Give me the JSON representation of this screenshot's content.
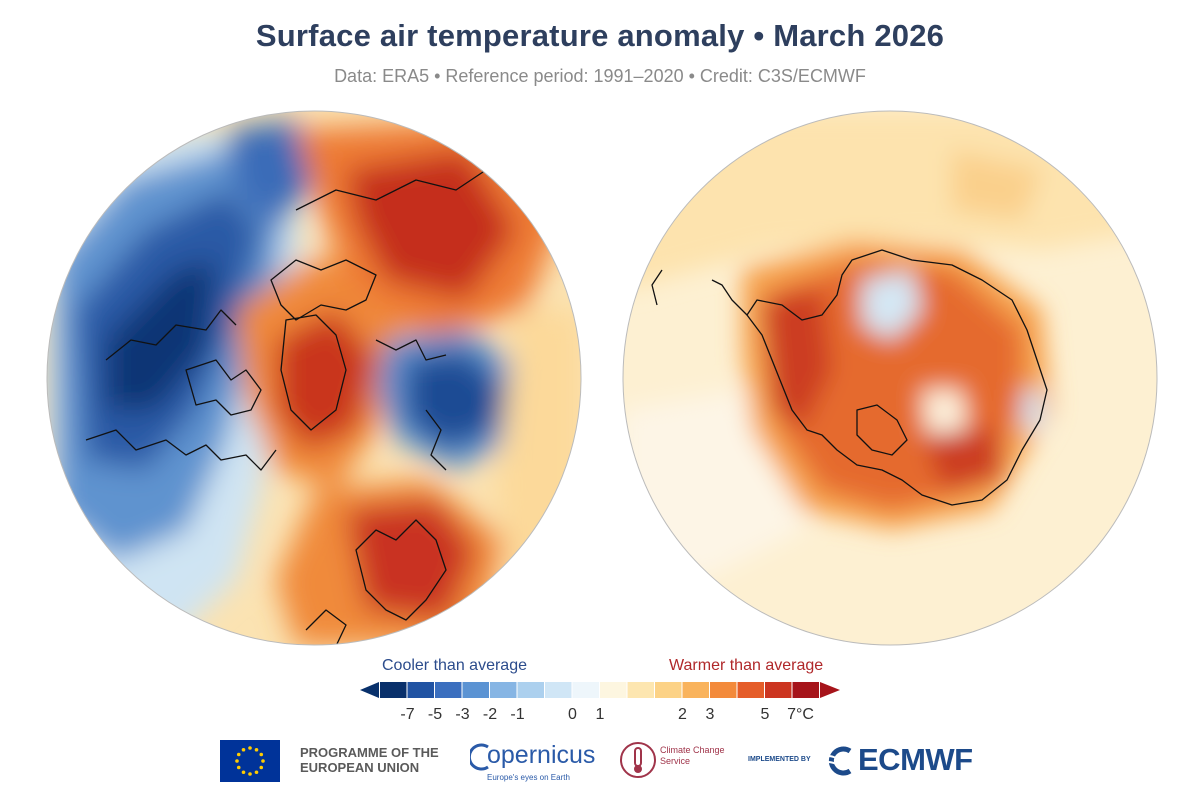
{
  "header": {
    "title": "Surface air temperature anomaly • March 2026",
    "subtitle": "Data: ERA5 • Reference period: 1991–2020 • Credit: C3S/ECMWF"
  },
  "maps": {
    "north": {
      "hemisphere": "Northern Hemisphere",
      "projection": "polar stereographic"
    },
    "south": {
      "hemisphere": "Southern Hemisphere",
      "projection": "polar stereographic"
    }
  },
  "legend": {
    "cooler_label": "Cooler than average",
    "warmer_label": "Warmer than average",
    "ticks": [
      "-7",
      "-5",
      "-3",
      "-2",
      "-1",
      "0",
      "1",
      "2",
      "3",
      "5",
      "7°C"
    ],
    "colors": [
      "#08306b",
      "#2153a3",
      "#3b6fbf",
      "#5b93d3",
      "#86b5e4",
      "#acd0ee",
      "#d0e6f6",
      "#eef6fb",
      "#fdf6e0",
      "#fde6b0",
      "#fcd286",
      "#f9b35c",
      "#f38a3b",
      "#e55d29",
      "#cc3520",
      "#a6141a"
    ],
    "cooler_color": "#2c4c8c",
    "warmer_color": "#b0282a"
  },
  "footer": {
    "programme": "PROGRAMME OF THE EUROPEAN UNION",
    "copernicus": "opernicus",
    "copernicus_tagline": "Europe's eyes on Earth",
    "c3s": "Climate Change Service",
    "implemented_by": "IMPLEMENTED BY",
    "ecmwf": "ECMWF",
    "eu_flag_icon": "eu-flag-icon"
  }
}
